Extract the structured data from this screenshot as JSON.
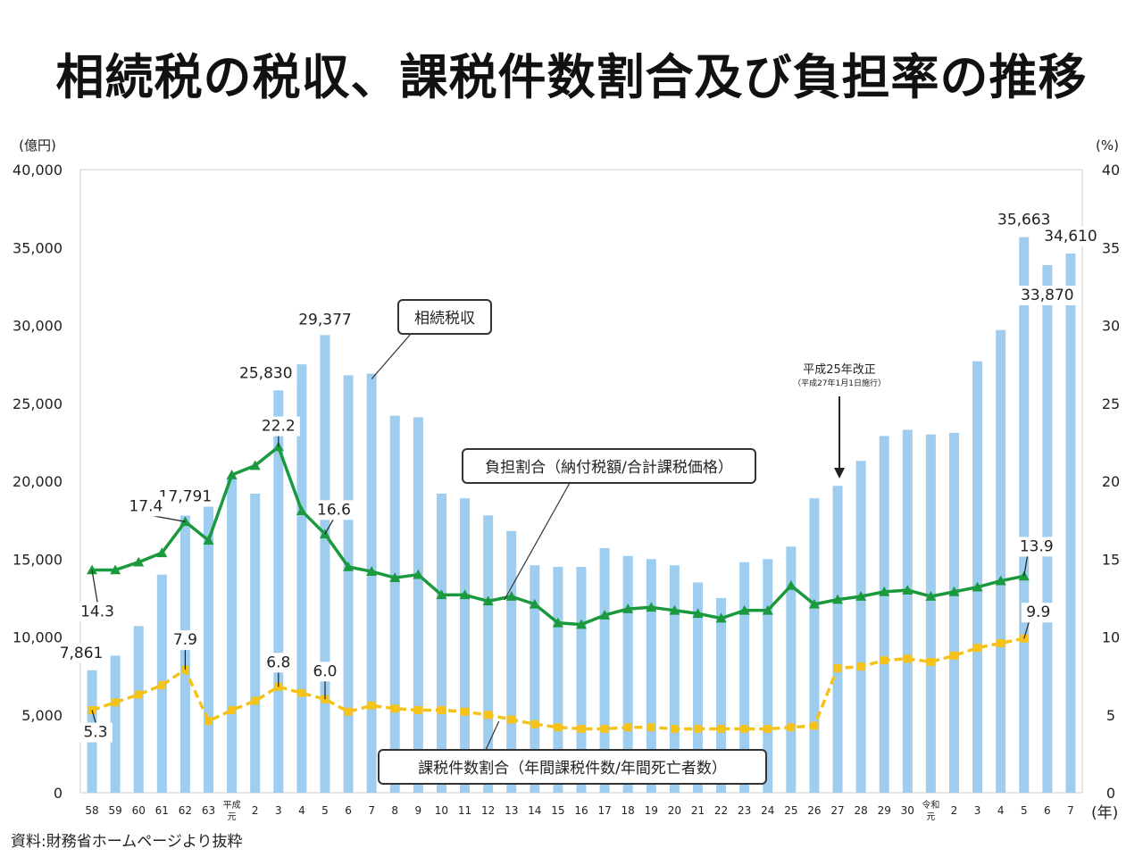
{
  "title": "相続税の税収、課税件数割合及び負担率の推移",
  "source": "資料:財務省ホームページより抜粋",
  "chart_data": {
    "type": "bar",
    "categories": [
      "58",
      "59",
      "60",
      "61",
      "62",
      "63",
      "平成元",
      "2",
      "3",
      "4",
      "5",
      "6",
      "7",
      "8",
      "9",
      "10",
      "11",
      "12",
      "13",
      "14",
      "15",
      "16",
      "17",
      "18",
      "19",
      "20",
      "21",
      "22",
      "23",
      "24",
      "25",
      "26",
      "27",
      "28",
      "29",
      "30",
      "令和元",
      "2",
      "3",
      "4",
      "5",
      "6",
      "7"
    ],
    "x_unit": "(年)",
    "left_axis": {
      "unit": "(億円)",
      "ylim": [
        0,
        40000
      ],
      "ticks": [
        "0",
        "5,000",
        "10,000",
        "15,000",
        "20,000",
        "25,000",
        "30,000",
        "35,000",
        "40,000"
      ]
    },
    "right_axis": {
      "unit": "(%)",
      "ylim": [
        0,
        40
      ],
      "ticks": [
        "0",
        "5",
        "10",
        "15",
        "20",
        "25",
        "30",
        "35",
        "40"
      ]
    },
    "series": [
      {
        "name": "相続税収",
        "type": "bar",
        "axis": "left",
        "color": "#9fcdf0",
        "values": [
          7861,
          8800,
          10700,
          14000,
          17791,
          18400,
          20200,
          19200,
          25830,
          27500,
          29377,
          26800,
          26903,
          24200,
          24100,
          19200,
          18900,
          17800,
          16800,
          14600,
          14500,
          14500,
          15700,
          15200,
          15000,
          14600,
          13500,
          12500,
          14800,
          15000,
          15800,
          18900,
          19700,
          21300,
          22900,
          23300,
          23000,
          23100,
          27700,
          29700,
          35663,
          33870,
          34610
        ]
      },
      {
        "name": "負担割合(納付税額/合計課税価格)",
        "type": "line",
        "axis": "right",
        "color": "#1a9a3c",
        "values": [
          14.3,
          14.3,
          14.8,
          15.4,
          17.4,
          16.2,
          20.4,
          21.0,
          22.2,
          18.1,
          16.6,
          14.5,
          14.2,
          13.8,
          14.0,
          12.7,
          12.7,
          12.3,
          12.6,
          12.1,
          10.9,
          10.8,
          11.4,
          11.8,
          11.9,
          11.7,
          11.5,
          11.2,
          11.7,
          11.7,
          13.3,
          12.1,
          12.4,
          12.6,
          12.9,
          13.0,
          12.6,
          12.9,
          13.2,
          13.6,
          13.9,
          null,
          null
        ]
      },
      {
        "name": "課税件数割合(年間課税件数/年間死亡者数)",
        "type": "line",
        "axis": "right",
        "color": "#f5c218",
        "values": [
          5.3,
          5.8,
          6.3,
          6.9,
          7.9,
          4.6,
          5.3,
          5.9,
          6.8,
          6.4,
          6.0,
          5.2,
          5.6,
          5.4,
          5.3,
          5.3,
          5.2,
          5.0,
          4.7,
          4.4,
          4.2,
          4.1,
          4.1,
          4.2,
          4.2,
          4.1,
          4.1,
          4.1,
          4.1,
          4.1,
          4.2,
          4.3,
          8.0,
          8.1,
          8.5,
          8.6,
          8.4,
          8.8,
          9.3,
          9.6,
          9.9,
          null,
          null
        ]
      }
    ],
    "bar_labels": [
      {
        "index": 0,
        "text": "7,861"
      },
      {
        "index": 4,
        "text": "17,791"
      },
      {
        "index": 8,
        "text": "25,830"
      },
      {
        "index": 10,
        "text": "29,377"
      },
      {
        "index": 40,
        "text": "35,663"
      },
      {
        "index": 41,
        "text": "33,870"
      },
      {
        "index": 42,
        "text": "34,610"
      }
    ],
    "line_labels": [
      {
        "series": 1,
        "index": 0,
        "text": "14.3"
      },
      {
        "series": 1,
        "index": 4,
        "text": "17.4"
      },
      {
        "series": 1,
        "index": 8,
        "text": "22.2"
      },
      {
        "series": 1,
        "index": 10,
        "text": "16.6"
      },
      {
        "series": 1,
        "index": 40,
        "text": "13.9"
      },
      {
        "series": 2,
        "index": 0,
        "text": "5.3"
      },
      {
        "series": 2,
        "index": 4,
        "text": "7.9"
      },
      {
        "series": 2,
        "index": 8,
        "text": "6.8"
      },
      {
        "series": 2,
        "index": 10,
        "text": "6.0"
      },
      {
        "series": 2,
        "index": 40,
        "text": "9.9"
      }
    ],
    "callouts": [
      {
        "text": "相続税収",
        "target_series": 0,
        "target_index": 12
      },
      {
        "text": "負担割合（納付税額/合計課税価格）",
        "target_series": 1,
        "target_index": 18
      },
      {
        "text": "課税件数割合（年間課税件数/年間死亡者数）",
        "target_series": 2,
        "target_index": 18
      }
    ],
    "annotation": {
      "line1": "平成25年改正",
      "line2": "（平成27年1月1日施行）",
      "target_index": 32
    }
  }
}
